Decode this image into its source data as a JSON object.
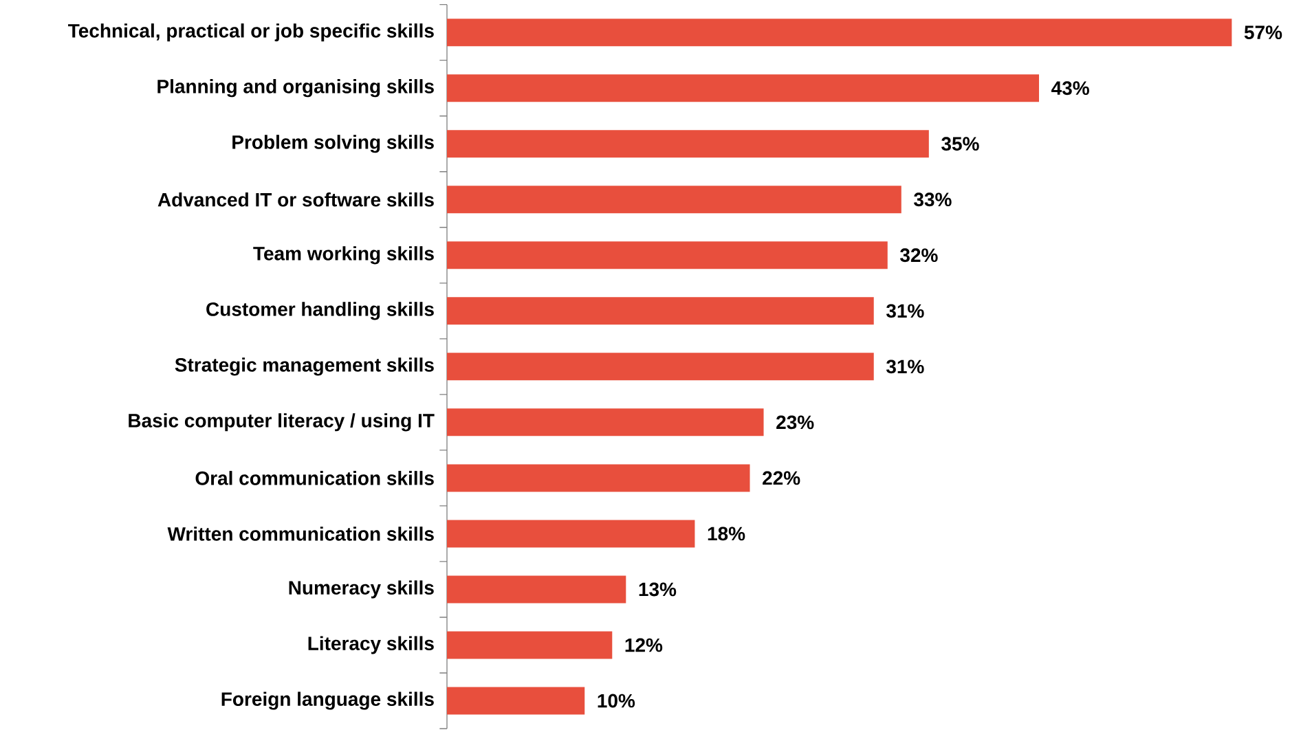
{
  "chart_data": {
    "type": "bar",
    "orientation": "horizontal",
    "color": "#e84f3d",
    "categories": [
      "Technical, practical or job specific skills",
      "Planning and organising skills",
      "Problem solving skills",
      "Advanced IT or software skills",
      "Team working skills",
      "Customer handling skills",
      "Strategic management skills",
      "Basic computer literacy / using IT",
      "Oral communication skills",
      "Written communication skills",
      "Numeracy skills",
      "Literacy skills",
      "Foreign language skills"
    ],
    "values": [
      57,
      43,
      35,
      33,
      32,
      31,
      31,
      23,
      22,
      18,
      13,
      12,
      10
    ],
    "value_labels": [
      "57%",
      "43%",
      "35%",
      "33%",
      "32%",
      "31%",
      "31%",
      "23%",
      "22%",
      "18%",
      "13%",
      "12%",
      "10%"
    ]
  }
}
